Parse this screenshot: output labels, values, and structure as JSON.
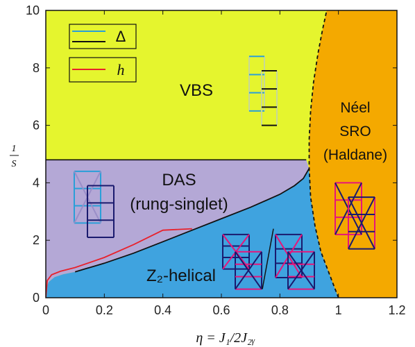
{
  "chart_data": {
    "type": "area",
    "xlabel": "η = J₁/2J₂ᵧ",
    "ylabel_num": "1",
    "ylabel_den": "S",
    "xlim": [
      0,
      1.2
    ],
    "ylim": [
      0,
      10
    ],
    "xticks": [
      "0",
      "0.2",
      "0.4",
      "0.6",
      "0.8",
      "1",
      "1.2"
    ],
    "yticks": [
      "0",
      "2",
      "4",
      "6",
      "8",
      "10"
    ],
    "regions": [
      {
        "name": "VBS",
        "lines": [
          "VBS"
        ],
        "color": "#e5f52e"
      },
      {
        "name": "DAS",
        "lines": [
          "DAS",
          "(rung-singlet)"
        ],
        "color": "#b4a8d6"
      },
      {
        "name": "Z2-helical",
        "lines": [
          "Z₂-helical"
        ],
        "color": "#3fa3df"
      },
      {
        "name": "Neel SRO",
        "lines": [
          "Néel",
          "SRO",
          "(Haldane)"
        ],
        "color": "#f4a900"
      }
    ],
    "boundaries": {
      "vbs_das_line": {
        "y": 4.8,
        "x": [
          0,
          0.89
        ]
      },
      "das_helical": {
        "x": [
          0,
          0.002,
          0.01,
          0.03,
          0.06,
          0.1,
          0.2,
          0.3,
          0.4,
          0.5,
          0.6,
          0.7,
          0.8,
          0.85,
          0.88,
          0.9
        ],
        "y": [
          0,
          0.35,
          0.55,
          0.72,
          0.82,
          0.9,
          1.2,
          1.55,
          1.95,
          2.35,
          2.75,
          3.15,
          3.6,
          3.9,
          4.15,
          4.5
        ]
      },
      "neel_boundary": {
        "x": [
          1.0,
          0.97,
          0.94,
          0.92,
          0.905,
          0.9,
          0.9,
          0.905,
          0.915,
          0.93,
          0.945,
          0.96
        ],
        "y": [
          0,
          0.8,
          1.6,
          2.5,
          3.5,
          4.5,
          5.5,
          6.5,
          7.5,
          8.5,
          9.3,
          10
        ]
      }
    },
    "series": [
      {
        "name": "h",
        "color": "#e8212b",
        "x": [
          0,
          0.005,
          0.02,
          0.05,
          0.1,
          0.2,
          0.3,
          0.4,
          0.5
        ],
        "y": [
          0,
          0.6,
          0.8,
          0.92,
          1.05,
          1.4,
          1.85,
          2.35,
          2.4
        ]
      }
    ],
    "legend": {
      "placement": "top-left",
      "entries": [
        {
          "label": "Δ",
          "colors": [
            "#2a9fd8",
            "#111111"
          ]
        },
        {
          "label": "h",
          "colors": [
            "#e8212b"
          ]
        }
      ]
    },
    "colors": {
      "blue": "#2a9fd8",
      "navy": "#1a1a6e",
      "magenta": "#e6157a"
    }
  }
}
